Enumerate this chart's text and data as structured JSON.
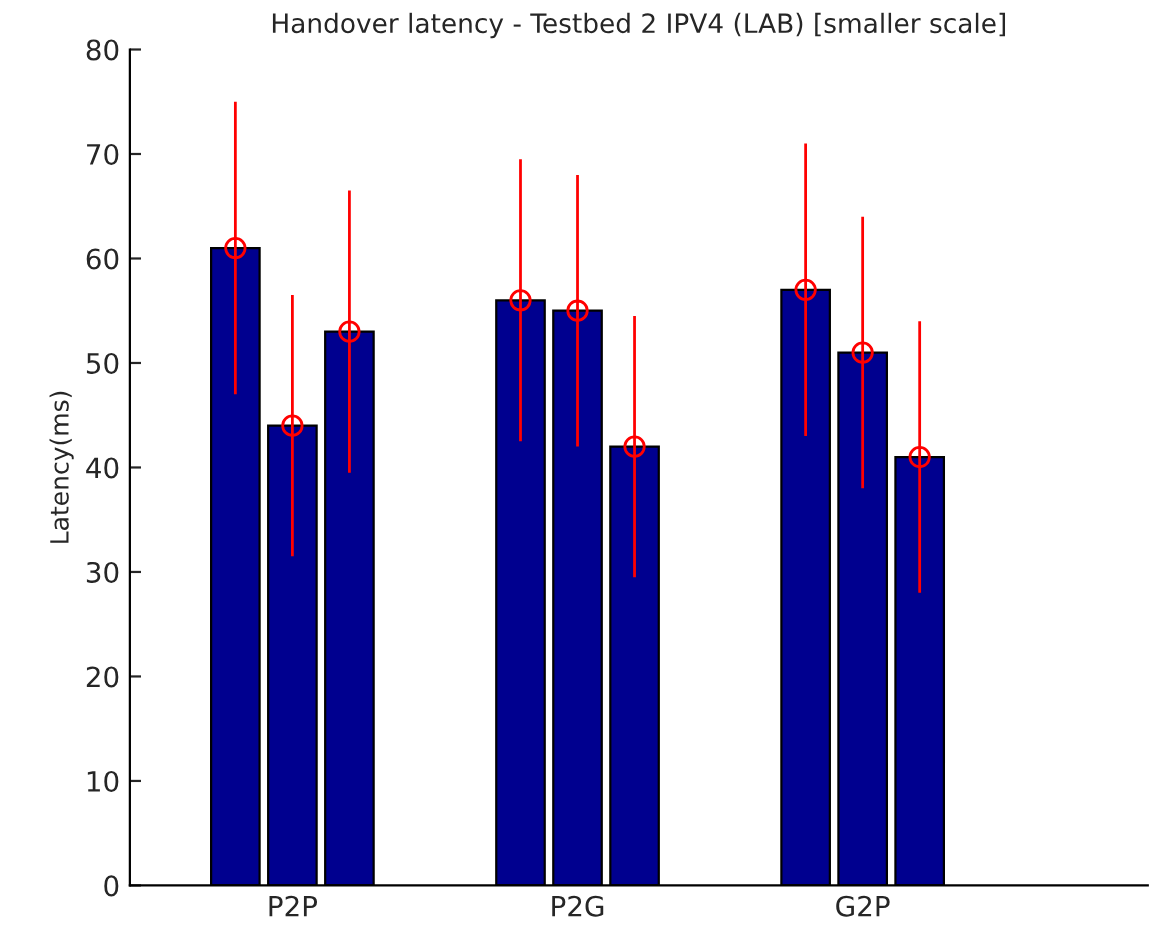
{
  "chart_data": {
    "type": "bar",
    "title": "Handover latency - Testbed 2 IPV4 (LAB) [smaller scale]",
    "ylabel": "Latency(ms)",
    "categories": [
      "P2P",
      "P2G",
      "G2P"
    ],
    "series": [
      {
        "color": "#00008f",
        "values": [
          61,
          56,
          57
        ]
      },
      {
        "color": "#00008f",
        "values": [
          44,
          55,
          51
        ]
      },
      {
        "color": "#00008f",
        "values": [
          53,
          42,
          41
        ]
      },
      {
        "type": "scatter",
        "color": "#ff0000",
        "values": [
          61,
          56,
          57
        ],
        "errors": [
          14,
          13.5,
          14
        ],
        "marker": "circle"
      },
      {
        "type": "scatter",
        "color": "#ff0000",
        "values": [
          44,
          55,
          51
        ],
        "errors": [
          12.5,
          13,
          13
        ],
        "marker": "circle"
      },
      {
        "type": "scatter",
        "color": "#ff0000",
        "values": [
          53,
          42,
          41
        ],
        "errors": [
          13.5,
          12.5,
          13
        ],
        "marker": "circle"
      }
    ],
    "ylim": [
      0,
      80
    ],
    "yticks": [
      0,
      10,
      20,
      30,
      40,
      50,
      60,
      70,
      80
    ],
    "grid": false,
    "legend": false
  }
}
